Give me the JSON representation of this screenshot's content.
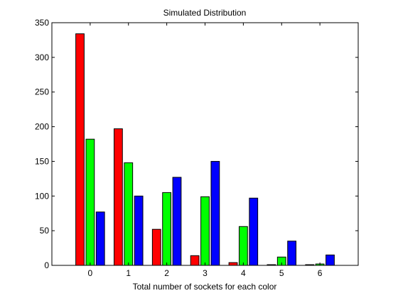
{
  "chart_data": {
    "type": "bar",
    "title": "Simulated Distribution",
    "xlabel": "Total number of sockets for each color",
    "ylabel": "",
    "categories": [
      "0",
      "1",
      "2",
      "3",
      "4",
      "5",
      "6"
    ],
    "xlim": [
      -1,
      7
    ],
    "ylim": [
      0,
      350
    ],
    "yticks": [
      0,
      50,
      100,
      150,
      200,
      250,
      300,
      350
    ],
    "grid": false,
    "legend": "none",
    "series": [
      {
        "color": "#ff0000",
        "values": [
          334,
          197,
          52,
          14,
          4,
          1,
          1
        ]
      },
      {
        "color": "#00ff00",
        "values": [
          182,
          148,
          105,
          99,
          56,
          12,
          2
        ]
      },
      {
        "color": "#0000ff",
        "values": [
          77,
          100,
          127,
          150,
          97,
          35,
          15
        ]
      }
    ]
  }
}
